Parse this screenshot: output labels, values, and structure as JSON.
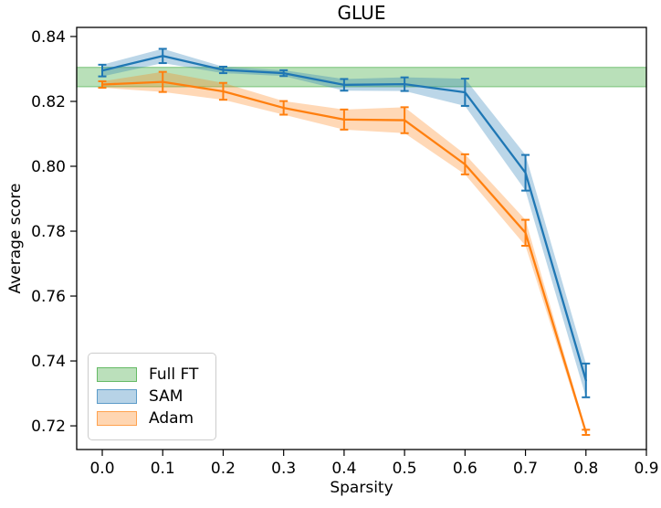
{
  "chart_data": {
    "type": "line",
    "title": "GLUE",
    "xlabel": "Sparsity",
    "ylabel": "Average score",
    "grid": false,
    "legend_position": "lower left",
    "xlim": [
      -0.0423,
      0.9
    ],
    "ylim": [
      0.7127,
      0.8428
    ],
    "xticks": {
      "values": [
        0.0,
        0.1,
        0.2,
        0.3,
        0.4,
        0.5,
        0.6,
        0.7,
        0.8,
        0.9
      ],
      "labels": [
        "0.0",
        "0.1",
        "0.2",
        "0.3",
        "0.4",
        "0.5",
        "0.6",
        "0.7",
        "0.8",
        "0.9"
      ]
    },
    "yticks": {
      "values": [
        0.84,
        0.82,
        0.8,
        0.78,
        0.76,
        0.74,
        0.72
      ],
      "labels": [
        "0.84",
        "0.82",
        "0.80",
        "0.78",
        "0.76",
        "0.74",
        "0.72"
      ]
    },
    "full_ft_band": {
      "label": "Full FT",
      "low": 0.8245,
      "high": 0.8305,
      "color": "#2ca02c"
    },
    "x": [
      0.0,
      0.1,
      0.2,
      0.3,
      0.4,
      0.5,
      0.6,
      0.7,
      0.8
    ],
    "series": [
      {
        "name": "SAM",
        "color": "#1f77b4",
        "y": [
          0.8295,
          0.834,
          0.8297,
          0.8287,
          0.8251,
          0.8253,
          0.8228,
          0.798,
          0.734
        ],
        "yerr": [
          0.0018,
          0.0022,
          0.001,
          0.0009,
          0.0018,
          0.0021,
          0.0042,
          0.0055,
          0.0052
        ]
      },
      {
        "name": "Adam",
        "color": "#ff7f0e",
        "y": [
          0.8252,
          0.826,
          0.8231,
          0.818,
          0.8144,
          0.8142,
          0.8006,
          0.7795,
          0.718
        ],
        "yerr": [
          0.001,
          0.0031,
          0.0026,
          0.0021,
          0.0031,
          0.004,
          0.0031,
          0.004,
          0.0008
        ]
      }
    ],
    "legend": [
      {
        "label": "Full FT",
        "color": "#2ca02c"
      },
      {
        "label": "SAM",
        "color": "#1f77b4"
      },
      {
        "label": "Adam",
        "color": "#ff7f0e"
      }
    ]
  }
}
